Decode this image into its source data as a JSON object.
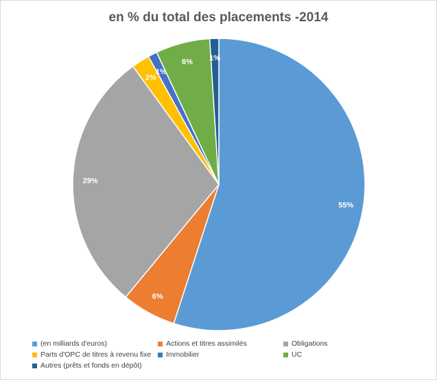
{
  "chart_data": {
    "type": "pie",
    "title": "en % du total des placements -2014",
    "slices": [
      {
        "name": "(en milliards d'euros)",
        "value": 55,
        "label": "55%",
        "color": "#5b9bd5"
      },
      {
        "name": "Actions et titres assimilés",
        "value": 6,
        "label": "6%",
        "color": "#ed7d31"
      },
      {
        "name": "Obligations",
        "value": 29,
        "label": "29%",
        "color": "#a5a5a5"
      },
      {
        "name": "Parts d'OPC de titres à revenu fixe",
        "value": 2,
        "label": "2%",
        "color": "#ffc000"
      },
      {
        "name": "Immobilier",
        "value": 1,
        "label": "1%",
        "color": "#4472c4"
      },
      {
        "name": "UC",
        "value": 6,
        "label": "6%",
        "color": "#70ad47"
      },
      {
        "name": "Autres (prêts et fonds en dépôt)",
        "value": 1,
        "label": "1%",
        "color": "#255e91"
      }
    ],
    "start_angle": "12 o'clock, clockwise",
    "legend_position": "bottom"
  }
}
